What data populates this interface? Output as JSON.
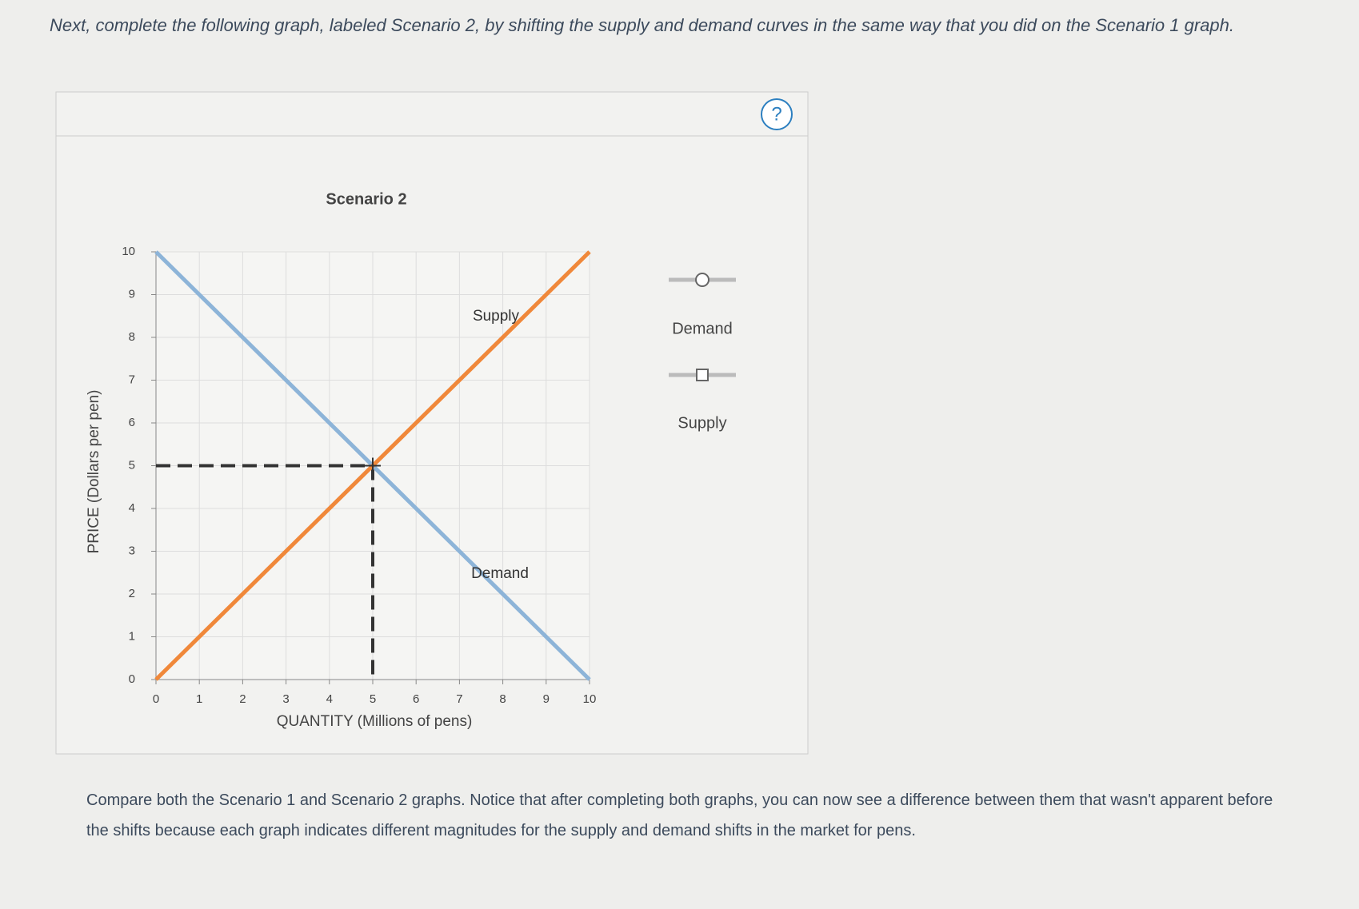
{
  "instructions": "Next, complete the following graph, labeled Scenario 2, by shifting the supply and demand curves in the same way that you did on the Scenario 1 graph.",
  "help_button": "?",
  "chart_data": {
    "type": "line",
    "title": "Scenario 2",
    "x_label": "QUANTITY (Millions of pens)",
    "y_label": "PRICE (Dollars per pen)",
    "xlim": [
      0,
      10
    ],
    "ylim": [
      0,
      10
    ],
    "xticks": [
      0,
      1,
      2,
      3,
      4,
      5,
      6,
      7,
      8,
      9,
      10
    ],
    "yticks": [
      0,
      1,
      2,
      3,
      4,
      5,
      6,
      7,
      8,
      9,
      10
    ],
    "grid": true,
    "series": [
      {
        "name": "Demand",
        "color": "#8db4d8",
        "x": [
          0,
          10
        ],
        "values": [
          10,
          0
        ]
      },
      {
        "name": "Supply",
        "color": "#f0883a",
        "x": [
          0,
          10
        ],
        "values": [
          0,
          10
        ]
      }
    ],
    "equilibrium": {
      "x": 5,
      "y": 5
    }
  },
  "compare_text": "Compare both the Scenario 1 and Scenario 2 graphs. Notice that after completing both graphs, you can now see a difference between them that wasn't apparent before the shifts because each graph indicates different magnitudes for the supply and demand shifts in the market for pens."
}
